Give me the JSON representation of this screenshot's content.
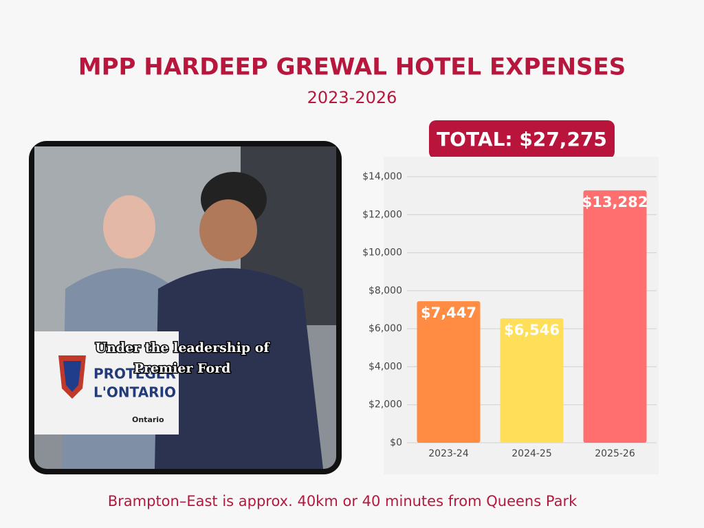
{
  "chart_data": {
    "type": "bar",
    "title": "MPP HARDEEP GREWAL HOTEL EXPENSES",
    "subtitle": "2023-2026",
    "total": "TOTAL: $27,275",
    "footnote": "Brampton–East is approx. 40km or 40 minutes from Queens Park",
    "categories": [
      "2023-24",
      "2024-25",
      "2025-26"
    ],
    "values": [
      7447,
      6546,
      13282
    ],
    "value_labels": [
      "$7,447",
      "$6,546",
      "$13,282"
    ],
    "colors": [
      "#ff8c42",
      "#ffde59",
      "#ff6f6f"
    ],
    "ylim": [
      0,
      14000
    ],
    "yticks": [
      {
        "value": 0,
        "label": "$0"
      },
      {
        "value": 2000,
        "label": "$2,000"
      },
      {
        "value": 4000,
        "label": "$4,000"
      },
      {
        "value": 6000,
        "label": "$6,000"
      },
      {
        "value": 8000,
        "label": "$8,000"
      },
      {
        "value": 10000,
        "label": "$10,000"
      },
      {
        "value": 12000,
        "label": "$12,000"
      },
      {
        "value": 14000,
        "label": "$14,000"
      }
    ],
    "grid": true
  },
  "photo": {
    "caption": [
      "Under the leadership of",
      "Premier Ford"
    ],
    "podium": [
      "PROTÉGER",
      "L'ONTARIO",
      "Ontario"
    ]
  }
}
